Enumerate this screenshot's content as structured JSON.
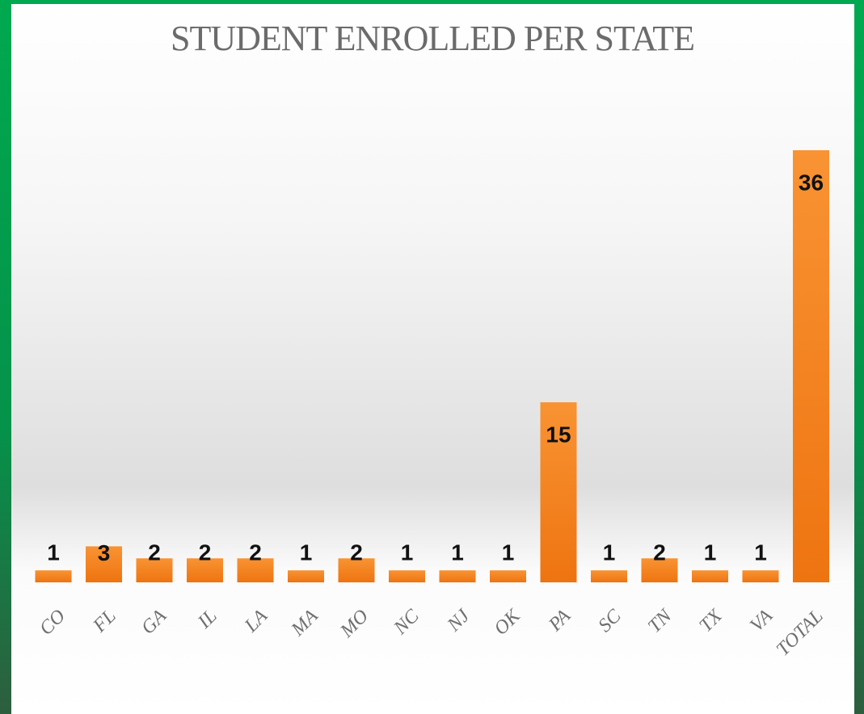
{
  "chart_data": {
    "type": "bar",
    "title": "STUDENT ENROLLED PER STATE",
    "categories": [
      "CO",
      "FL",
      "GA",
      "IL",
      "LA",
      "MA",
      "MO",
      "NC",
      "NJ",
      "OK",
      "PA",
      "SC",
      "TN",
      "TX",
      "VA",
      "TOTAL"
    ],
    "values": [
      1,
      3,
      2,
      2,
      2,
      1,
      2,
      1,
      1,
      1,
      15,
      1,
      2,
      1,
      1,
      36
    ],
    "color": "#f5841f"
  }
}
